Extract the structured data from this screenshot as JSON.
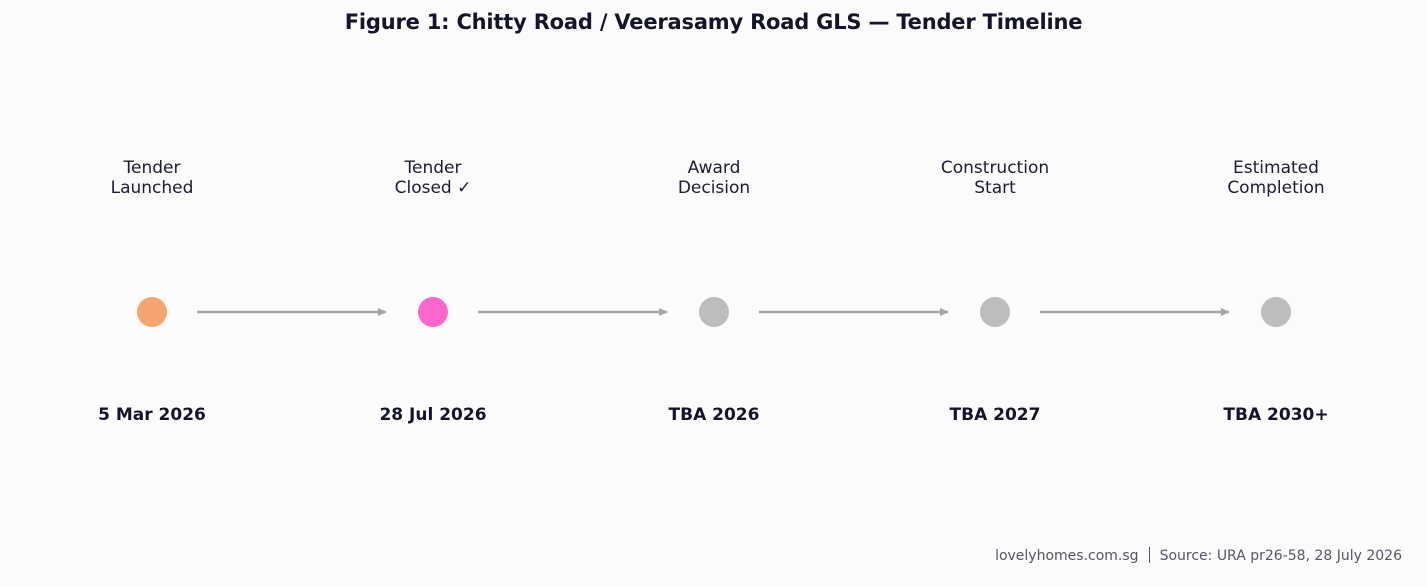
{
  "title": "Figure 1: Chitty Road / Veerasamy Road GLS — Tender Timeline",
  "milestones": [
    {
      "label": "Tender\nLaunched",
      "date": "5 Mar 2026",
      "color": "#f4a46c"
    },
    {
      "label": "Tender\nClosed ✓",
      "date": "28 Jul 2026",
      "color": "#ff66cc"
    },
    {
      "label": "Award\nDecision",
      "date": "TBA 2026",
      "color": "#bdbdbd"
    },
    {
      "label": "Construction\nStart",
      "date": "TBA 2027",
      "color": "#bdbdbd"
    },
    {
      "label": "Estimated\nCompletion",
      "date": "TBA 2030+",
      "color": "#bdbdbd"
    }
  ],
  "arrow_color": "#a6a6a6",
  "footer": {
    "site": "lovelyhomes.com.sg",
    "source": "Source: URA pr26-58, 28 July 2026"
  }
}
